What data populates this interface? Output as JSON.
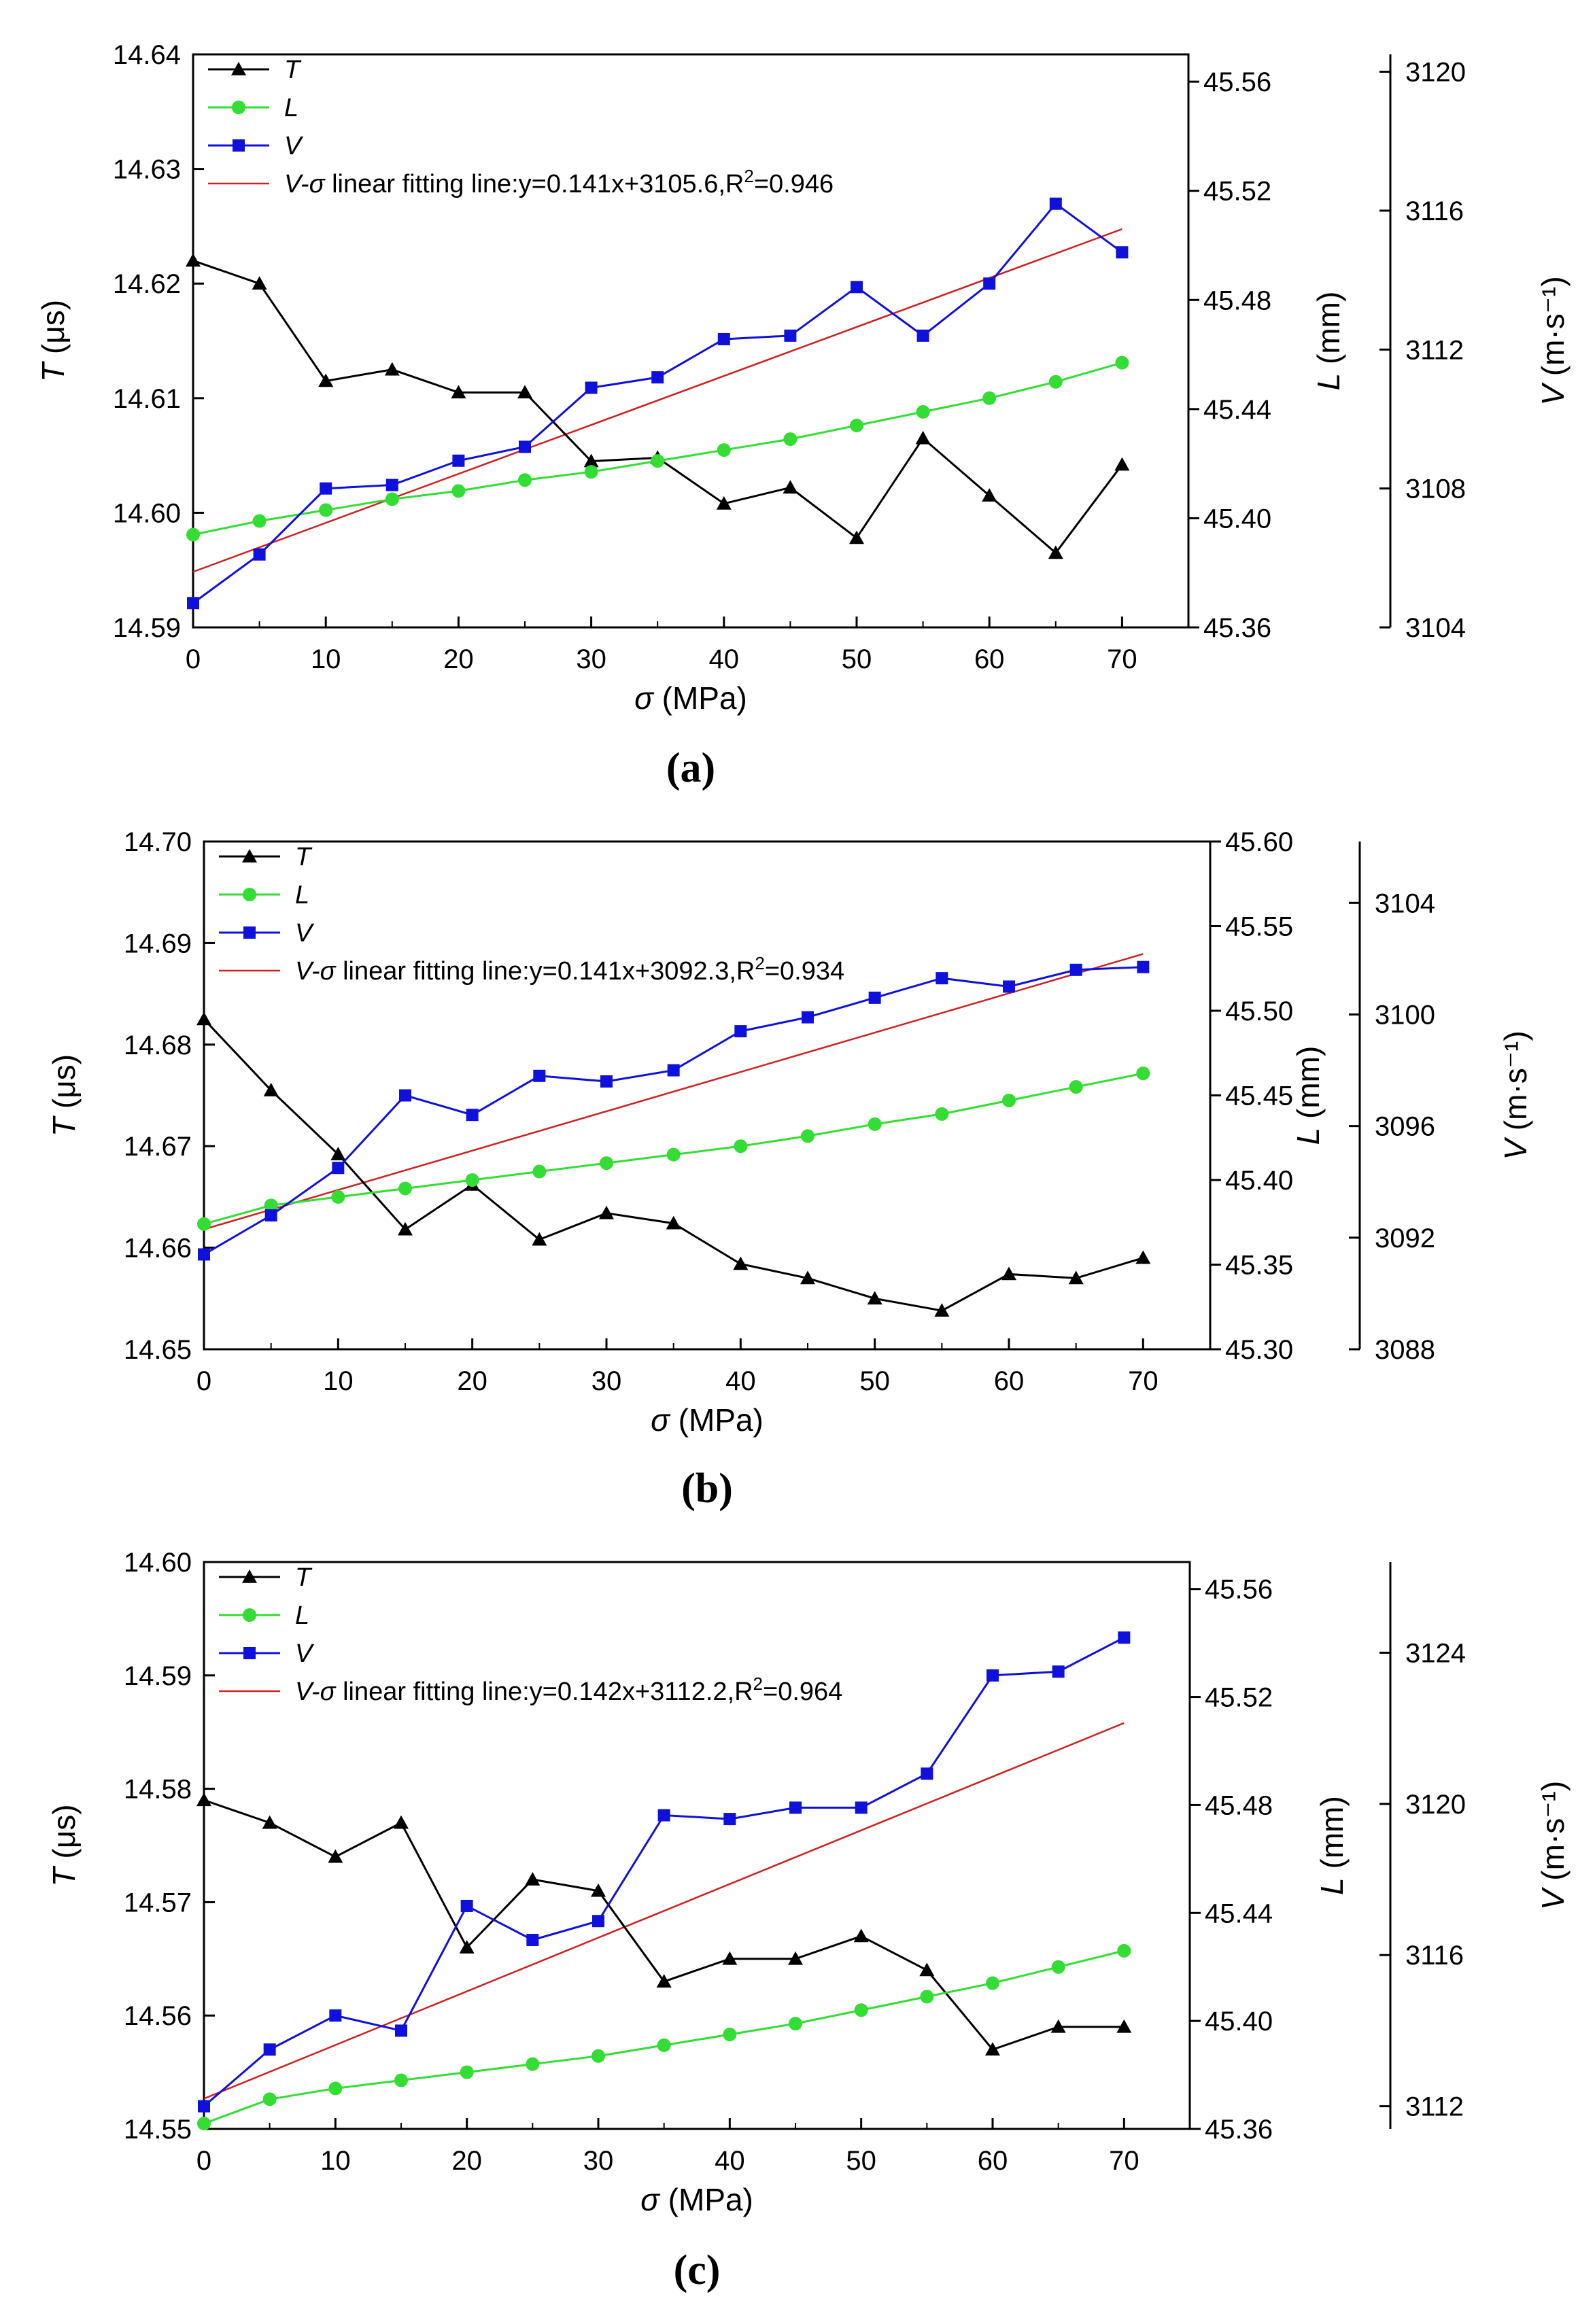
{
  "figure": {
    "panel_labels": [
      "(a)",
      "(b)",
      "(c)"
    ]
  },
  "chart_data": [
    {
      "panel": "(a)",
      "type": "line",
      "x": [
        0,
        5,
        10,
        15,
        20,
        25,
        30,
        35,
        40,
        45,
        50,
        55,
        60,
        65,
        70
      ],
      "xlabel_var": "σ",
      "xlabel_unit": "(MPa)",
      "xlim": [
        0,
        75
      ],
      "xticks": [
        0,
        10,
        20,
        30,
        40,
        50,
        60,
        70
      ],
      "axes": {
        "T": {
          "label_var": "T",
          "label_unit": "(μs)",
          "lim": [
            14.59,
            14.64
          ],
          "ticks": [
            "14.59",
            "14.60",
            "14.61",
            "14.62",
            "14.63",
            "14.64"
          ]
        },
        "L": {
          "label_var": "L",
          "label_unit": "(mm)",
          "lim": [
            45.36,
            45.57
          ],
          "ticks": [
            "45.36",
            "45.40",
            "45.44",
            "45.48",
            "45.52",
            "45.56"
          ]
        },
        "V": {
          "label_var": "V",
          "label_unit": "(m·s⁻¹)",
          "lim": [
            3104,
            3120.5
          ],
          "ticks": [
            "3104",
            "3108",
            "3112",
            "3116",
            "3120"
          ]
        }
      },
      "series": [
        {
          "name": "T",
          "axis": "T",
          "marker": "triangle",
          "color": "#000000",
          "values": [
            14.622,
            14.62,
            14.6115,
            14.6125,
            14.6105,
            14.6105,
            14.6045,
            14.6048,
            14.6008,
            14.6022,
            14.5978,
            14.6065,
            14.6015,
            14.5965,
            14.6042
          ]
        },
        {
          "name": "L",
          "axis": "L",
          "marker": "circle",
          "color": "#33dd33",
          "values": [
            45.394,
            45.399,
            45.403,
            45.407,
            45.41,
            45.414,
            45.417,
            45.421,
            45.425,
            45.429,
            45.434,
            45.439,
            45.444,
            45.45,
            45.457
          ]
        },
        {
          "name": "V",
          "axis": "V",
          "marker": "square",
          "color": "#1010dd",
          "values": [
            3104.7,
            3106.1,
            3108.0,
            3108.1,
            3108.8,
            3109.2,
            3110.9,
            3111.2,
            3112.3,
            3112.4,
            3113.8,
            3112.4,
            3113.9,
            3116.2,
            3114.8
          ]
        }
      ],
      "fit": {
        "name_var": "V-σ",
        "name_rest": " linear fitting line:y=0.141x+3105.6,R",
        "r2": "=0.946",
        "axis": "V",
        "slope": 0.141,
        "intercept": 3105.6,
        "color": "#cc2222"
      }
    },
    {
      "panel": "(b)",
      "type": "line",
      "x": [
        0,
        5,
        10,
        15,
        20,
        25,
        30,
        35,
        40,
        45,
        50,
        55,
        60,
        65,
        70
      ],
      "xlabel_var": "σ",
      "xlabel_unit": "(MPa)",
      "xlim": [
        0,
        75
      ],
      "xticks": [
        0,
        10,
        20,
        30,
        40,
        50,
        60,
        70
      ],
      "axes": {
        "T": {
          "label_var": "T",
          "label_unit": "(μs)",
          "lim": [
            14.65,
            14.7
          ],
          "ticks": [
            "14.65",
            "14.66",
            "14.67",
            "14.68",
            "14.69",
            "14.70"
          ]
        },
        "L": {
          "label_var": "L",
          "label_unit": "(mm)",
          "lim": [
            45.3,
            45.6
          ],
          "ticks": [
            "45.30",
            "45.35",
            "45.40",
            "45.45",
            "45.50",
            "45.55",
            "45.60"
          ]
        },
        "V": {
          "label_var": "V",
          "label_unit": "(m·s⁻¹)",
          "lim": [
            3088,
            3106.2
          ],
          "ticks": [
            "3088",
            "3092",
            "3096",
            "3100",
            "3104"
          ]
        }
      },
      "series": [
        {
          "name": "T",
          "axis": "T",
          "marker": "triangle",
          "color": "#000000",
          "values": [
            14.6825,
            14.6755,
            14.6692,
            14.6618,
            14.6662,
            14.6608,
            14.6634,
            14.6624,
            14.6584,
            14.657,
            14.655,
            14.6538,
            14.6574,
            14.657,
            14.659
          ]
        },
        {
          "name": "L",
          "axis": "L",
          "marker": "circle",
          "color": "#33dd33",
          "values": [
            45.374,
            45.385,
            45.39,
            45.395,
            45.4,
            45.405,
            45.41,
            45.415,
            45.42,
            45.426,
            45.433,
            45.439,
            45.447,
            45.455,
            45.463
          ]
        },
        {
          "name": "V",
          "axis": "V",
          "marker": "square",
          "color": "#1010dd",
          "values": [
            3091.4,
            3092.8,
            3094.5,
            3097.1,
            3096.4,
            3097.8,
            3097.6,
            3098.0,
            3099.4,
            3099.9,
            3100.6,
            3101.3,
            3101.0,
            3101.6,
            3101.7
          ]
        }
      ],
      "fit": {
        "name_var": "V-σ",
        "name_rest": " linear fitting line:y=0.141x+3092.3,R",
        "r2": "=0.934",
        "axis": "V",
        "slope": 0.141,
        "intercept": 3092.3,
        "color": "#cc2222"
      }
    },
    {
      "panel": "(c)",
      "type": "line",
      "x": [
        0,
        5,
        10,
        15,
        20,
        25,
        30,
        35,
        40,
        45,
        50,
        55,
        60,
        65,
        70
      ],
      "xlabel_var": "σ",
      "xlabel_unit": "(MPa)",
      "xlim": [
        0,
        75
      ],
      "xticks": [
        0,
        10,
        20,
        30,
        40,
        50,
        60,
        70
      ],
      "axes": {
        "T": {
          "label_var": "T",
          "label_unit": "(μs)",
          "lim": [
            14.55,
            14.6
          ],
          "ticks": [
            "14.55",
            "14.56",
            "14.57",
            "14.58",
            "14.59",
            "14.60"
          ]
        },
        "L": {
          "label_var": "L",
          "label_unit": "(mm)",
          "lim": [
            45.36,
            45.57
          ],
          "ticks": [
            "45.36",
            "45.40",
            "45.44",
            "45.48",
            "45.52",
            "45.56"
          ]
        },
        "V": {
          "label_var": "V",
          "label_unit": "(m·s⁻¹)",
          "lim": [
            3111.4,
            3126.4
          ],
          "ticks": [
            "3112",
            "3116",
            "3120",
            "3124"
          ]
        }
      },
      "series": [
        {
          "name": "T",
          "axis": "T",
          "marker": "triangle",
          "color": "#000000",
          "values": [
            14.579,
            14.577,
            14.574,
            14.577,
            14.566,
            14.572,
            14.571,
            14.563,
            14.565,
            14.565,
            14.567,
            14.564,
            14.557,
            14.559,
            14.559
          ]
        },
        {
          "name": "L",
          "axis": "L",
          "marker": "circle",
          "color": "#33dd33",
          "values": [
            45.362,
            45.371,
            45.375,
            45.378,
            45.381,
            45.384,
            45.387,
            45.391,
            45.395,
            45.399,
            45.404,
            45.409,
            45.414,
            45.42,
            45.426
          ]
        },
        {
          "name": "V",
          "axis": "V",
          "marker": "square",
          "color": "#1010dd",
          "values": [
            3112.0,
            3113.5,
            3114.4,
            3114.0,
            3117.3,
            3116.4,
            3116.9,
            3119.7,
            3119.6,
            3119.9,
            3119.9,
            3120.8,
            3123.4,
            3123.5,
            3124.4
          ]
        }
      ],
      "fit": {
        "name_var": "V-σ",
        "name_rest": " linear fitting line:y=0.142x+3112.2,R",
        "r2": "=0.964",
        "axis": "V",
        "slope": 0.142,
        "intercept": 3112.2,
        "color": "#cc2222"
      }
    }
  ]
}
